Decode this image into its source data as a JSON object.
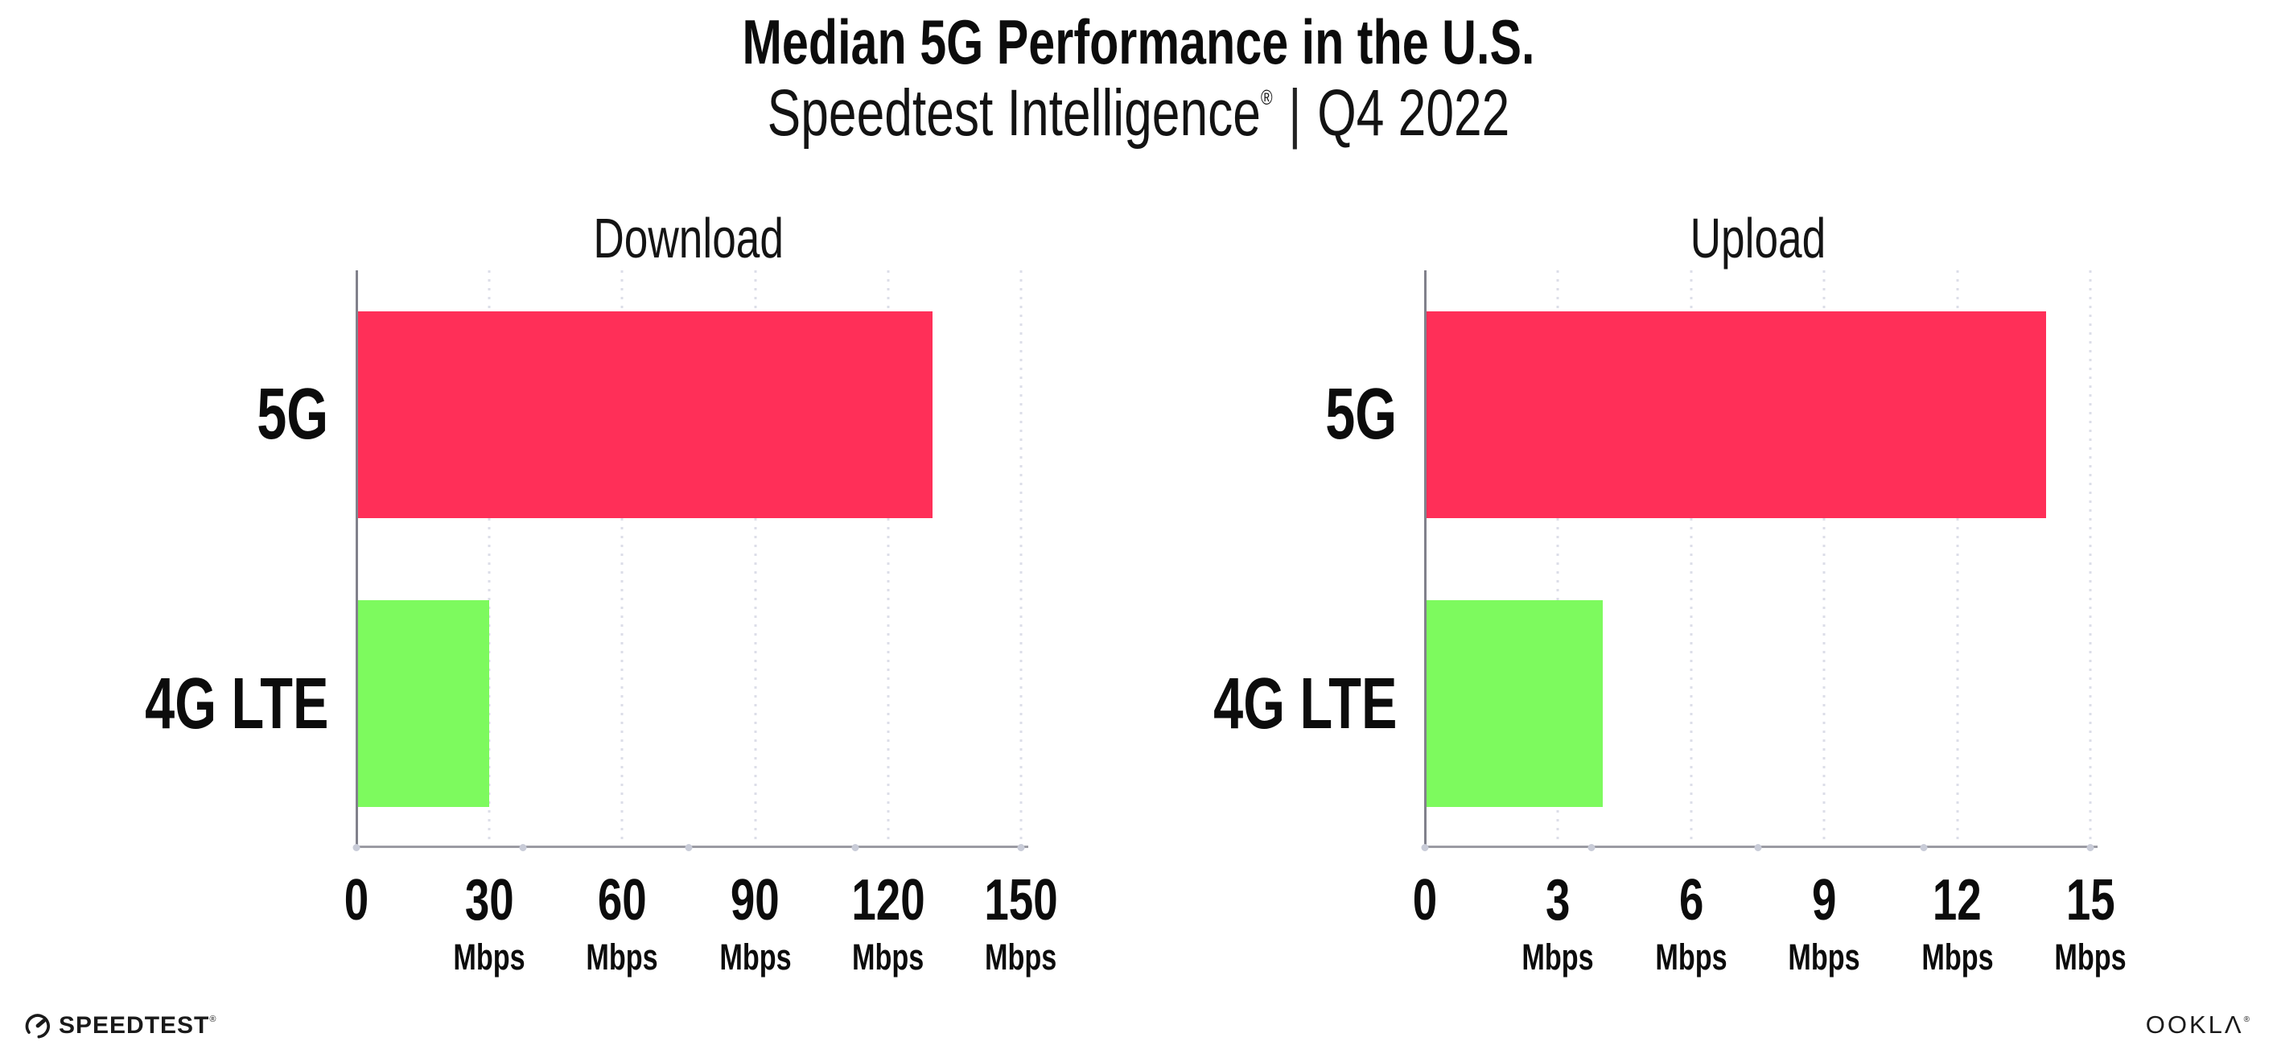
{
  "header": {
    "title": "Median 5G Performance in the U.S.",
    "subtitle_brand": "Speedtest Intelligence",
    "subtitle_reg": "®",
    "subtitle_separator": "|",
    "subtitle_period": "Q4 2022"
  },
  "chart_data": [
    {
      "type": "bar",
      "orientation": "horizontal",
      "title": "Download",
      "categories": [
        "5G",
        "4G LTE"
      ],
      "values": [
        130,
        30
      ],
      "unit": "Mbps",
      "xlim": [
        0,
        150
      ],
      "xticks": [
        0,
        30,
        60,
        90,
        120,
        150
      ],
      "xtick_labels": [
        "0",
        "30",
        "60",
        "90",
        "120",
        "150"
      ],
      "grid": "vertical dotted",
      "legend": "none",
      "bar_colors": [
        "#ff2f58",
        "#7dfa5e"
      ]
    },
    {
      "type": "bar",
      "orientation": "horizontal",
      "title": "Upload",
      "categories": [
        "5G",
        "4G LTE"
      ],
      "values": [
        14,
        4
      ],
      "unit": "Mbps",
      "xlim": [
        0,
        15
      ],
      "xticks": [
        0,
        3,
        6,
        9,
        12,
        15
      ],
      "xtick_labels": [
        "0",
        "3",
        "6",
        "9",
        "12",
        "15"
      ],
      "grid": "vertical dotted",
      "legend": "none",
      "bar_colors": [
        "#ff2f58",
        "#7dfa5e"
      ]
    }
  ],
  "footer": {
    "speedtest_label": "SPEEDTEST",
    "speedtest_reg": "®",
    "ookla_label": "OOKLΛ",
    "ookla_reg": "®"
  }
}
